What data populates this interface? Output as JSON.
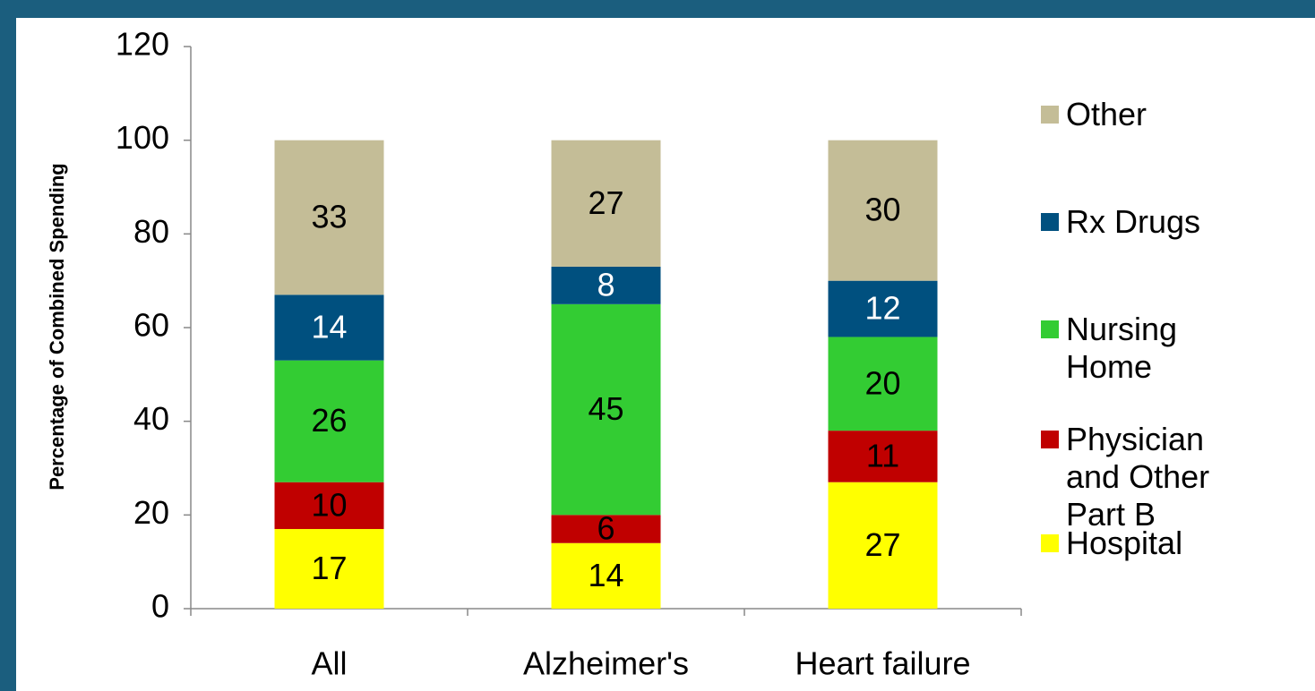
{
  "chart_data": {
    "type": "stacked_bar",
    "y_axis_label": "Percentage of Combined Spending",
    "categories": [
      "All",
      "Alzheimer's",
      "Heart failure"
    ],
    "series": [
      {
        "name": "Hospital",
        "color": "#ffff00",
        "label_color": "#000000",
        "values": [
          17,
          14,
          27
        ]
      },
      {
        "name": "Physician and Other Part B",
        "color": "#c00000",
        "label_color": "#000000",
        "values": [
          10,
          6,
          11
        ]
      },
      {
        "name": "Nursing Home",
        "color": "#33cc33",
        "label_color": "#000000",
        "values": [
          26,
          45,
          20
        ]
      },
      {
        "name": "Rx Drugs",
        "color": "#00507f",
        "label_color": "#ffffff",
        "values": [
          14,
          8,
          12
        ]
      },
      {
        "name": "Other",
        "color": "#c4bd97",
        "label_color": "#000000",
        "values": [
          33,
          27,
          30
        ]
      }
    ],
    "ylim": [
      0,
      120
    ],
    "yticks": [
      0,
      20,
      40,
      60,
      80,
      100,
      120
    ],
    "grid": false,
    "legend": "right"
  }
}
